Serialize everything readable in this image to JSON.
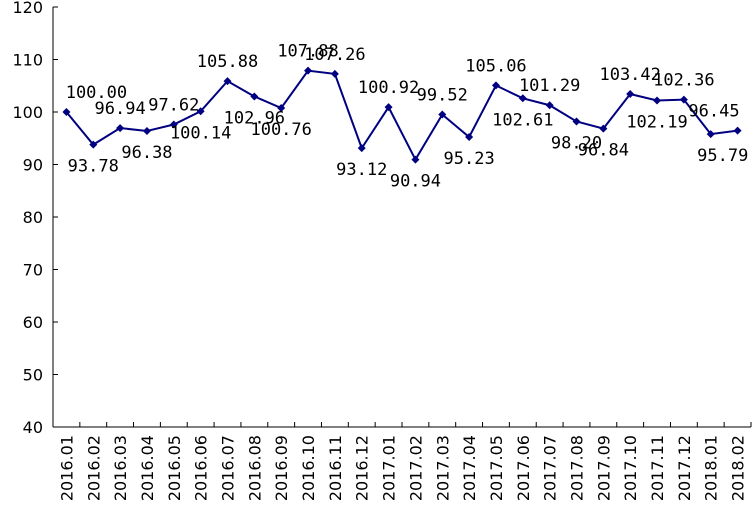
{
  "chart_data": {
    "type": "line",
    "title": "",
    "xlabel": "",
    "ylabel": "",
    "ylim": [
      40,
      120
    ],
    "yticks": [
      "40",
      "50",
      "60",
      "70",
      "80",
      "90",
      "100",
      "110",
      "120"
    ],
    "grid": false,
    "categories": [
      "2016.01",
      "2016.02",
      "2016.03",
      "2016.04",
      "2016.05",
      "2016.06",
      "2016.07",
      "2016.08",
      "2016.09",
      "2016.10",
      "2016.11",
      "2016.12",
      "2017.01",
      "2017.02",
      "2017.03",
      "2017.04",
      "2017.05",
      "2017.06",
      "2017.07",
      "2017.08",
      "2017.09",
      "2017.10",
      "2017.11",
      "2017.12",
      "2018.01",
      "2018.02"
    ],
    "series": [
      {
        "color": "#000080",
        "values": [
          100.0,
          93.78,
          96.94,
          96.38,
          97.62,
          100.14,
          105.88,
          102.96,
          100.76,
          107.88,
          107.26,
          93.12,
          100.92,
          90.94,
          99.52,
          95.23,
          105.06,
          102.61,
          101.29,
          98.2,
          96.84,
          103.42,
          102.19,
          102.36,
          95.79,
          96.45
        ],
        "labels": [
          "100.00",
          "93.78",
          "96.94",
          "96.38",
          "97.62",
          "100.14",
          "105.88",
          "102.96",
          "100.76",
          "107.88",
          "107.26",
          "93.12",
          "100.92",
          "90.94",
          "99.52",
          "95.23",
          "105.06",
          "102.61",
          "101.29",
          "98.20",
          "96.84",
          "103.42",
          "102.19",
          "102.36",
          "95.79",
          "96.45"
        ]
      }
    ]
  }
}
